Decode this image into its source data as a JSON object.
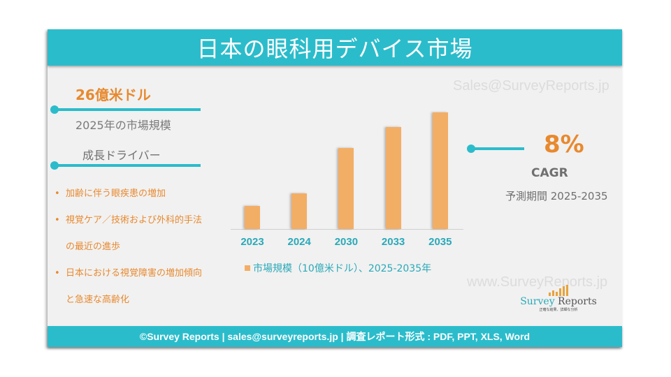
{
  "header": {
    "title": "日本の眼科用デバイス市場"
  },
  "market": {
    "value": "26億米ドル",
    "label": "2025年の市場規模"
  },
  "drivers": {
    "heading": "成長ドライバー",
    "items": [
      {
        "bullet": "•",
        "text": "加齢に伴う眼疾患の増加"
      },
      {
        "bullet": "•",
        "text": "視覚ケア／技術および外科的手法"
      },
      {
        "bullet": "",
        "text": "の最近の進歩"
      },
      {
        "bullet": "•",
        "text": "日本における視覚障害の増加傾向"
      },
      {
        "bullet": "",
        "text": "と急速な高齢化"
      }
    ]
  },
  "watermarks": {
    "email": "Sales@SurveyReports.jp",
    "website": "www.SurveyReports.jp"
  },
  "cagr": {
    "value": "8%",
    "label": "CAGR",
    "period": "予測期間 2025-2035"
  },
  "logo": {
    "name_part1": "Survey",
    "name_part2": " Reports",
    "tagline": "正確な結果、詳細な分析"
  },
  "footer": {
    "text": "©Survey Reports | sales@surveyreports.jp |  調査レポート形式 : PDF, PPT, XLS, Word"
  },
  "colors": {
    "accent_teal": "#2bbccb",
    "bar_orange": "#f3ae66",
    "highlight_orange": "#e8892e",
    "background": "#f1f1f1"
  },
  "chart_data": {
    "type": "bar",
    "title": "",
    "categories": [
      "2023",
      "2024",
      "2030",
      "2033",
      "2035"
    ],
    "series": [
      {
        "name": "市場規模（10億米ドル）、2025-2035年",
        "values": [
          1.1,
          1.7,
          3.9,
          4.9,
          5.6
        ]
      }
    ],
    "legend": "市場規模（10億米ドル）、2025-2035年",
    "legend_position": "bottom",
    "xlabel": "",
    "ylabel": "",
    "grid": false,
    "note": "values are estimated from relative bar heights; no y-axis shown"
  }
}
